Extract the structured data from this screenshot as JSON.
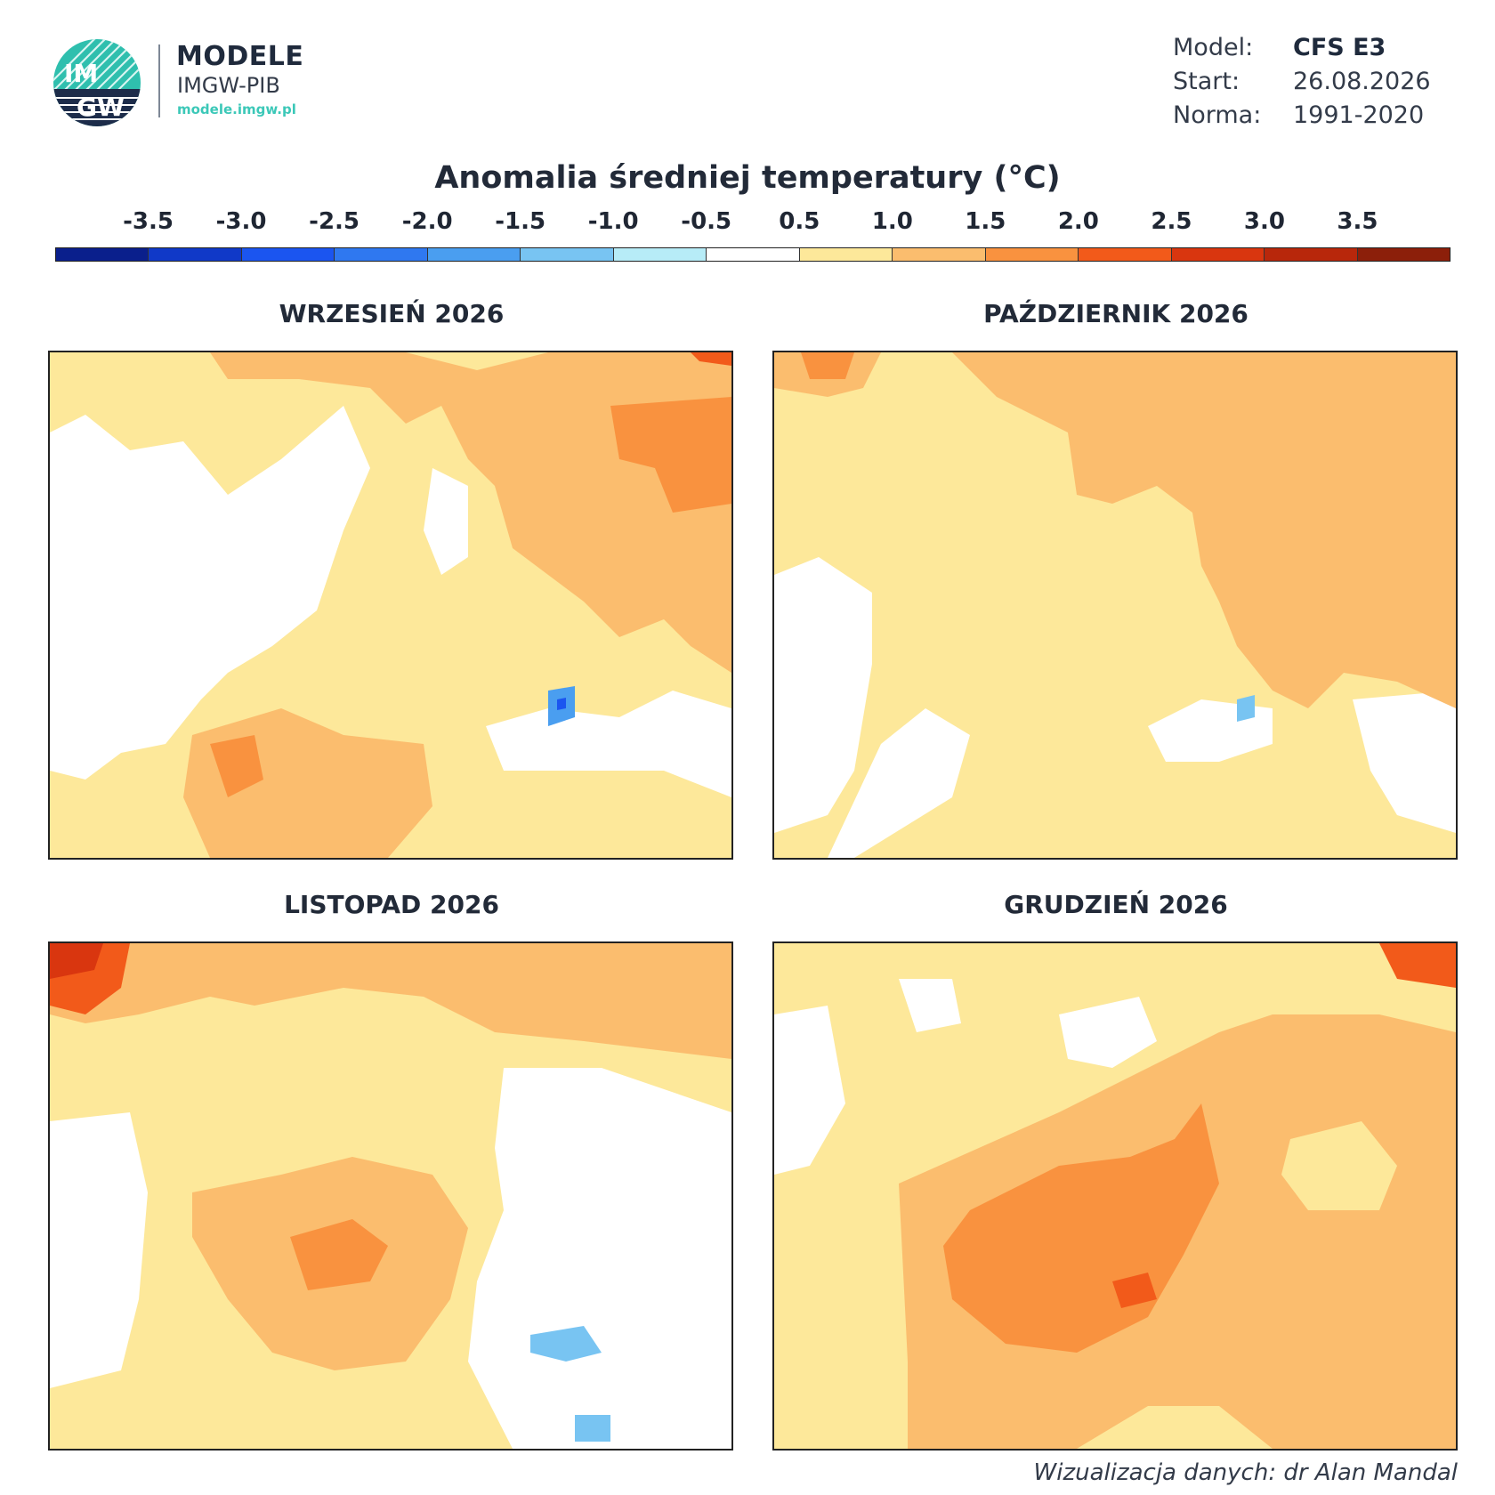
{
  "brand": {
    "logo_text_top": "IM",
    "logo_text_bottom": "GW",
    "title": "MODELE",
    "subtitle": "IMGW-PIB",
    "url": "modele.imgw.pl"
  },
  "info": {
    "model_label": "Model:",
    "model_value": "CFS E3",
    "start_label": "Start:",
    "start_value": "26.08.2026",
    "norma_label": "Norma:",
    "norma_value": "1991-2020"
  },
  "title": "Anomalia średniej temperatury (°C)",
  "legend": {
    "ticks": [
      "-3.5",
      "-3.0",
      "-2.5",
      "-2.0",
      "-1.5",
      "-1.0",
      "-0.5",
      "0.5",
      "1.0",
      "1.5",
      "2.0",
      "2.5",
      "3.0",
      "3.5"
    ],
    "colors": [
      "#0a1f8c",
      "#1039c8",
      "#1b55f0",
      "#2f78f0",
      "#4a9ef0",
      "#78c4f2",
      "#b7ecf7",
      "#ffffff",
      "#fde89a",
      "#fbbd6e",
      "#f9923f",
      "#f25a1a",
      "#d9360f",
      "#b8270b",
      "#8c1f0a"
    ]
  },
  "panels": [
    {
      "title": "WRZESIEŃ 2026"
    },
    {
      "title": "PAŹDZIERNIK 2026"
    },
    {
      "title": "LISTOPAD 2026"
    },
    {
      "title": "GRUDZIEŃ 2026"
    }
  ],
  "credit": "Wizualizacja danych: dr Alan Mandal"
}
